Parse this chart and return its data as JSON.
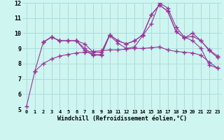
{
  "xlabel": "Windchill (Refroidissement éolien,°C)",
  "bg_color": "#cef5f0",
  "grid_color": "#aadddd",
  "line_color": "#993399",
  "xlim": [
    -0.5,
    23.5
  ],
  "ylim": [
    5,
    12
  ],
  "xticks": [
    0,
    1,
    2,
    3,
    4,
    5,
    6,
    7,
    8,
    9,
    10,
    11,
    12,
    13,
    14,
    15,
    16,
    17,
    18,
    19,
    20,
    21,
    22,
    23
  ],
  "yticks": [
    5,
    6,
    7,
    8,
    9,
    10,
    11,
    12
  ],
  "lines": [
    {
      "x": [
        0,
        1,
        2,
        3,
        4,
        5,
        6,
        7,
        8,
        9,
        10,
        11,
        12,
        13,
        14,
        15,
        16,
        17,
        18,
        19,
        20,
        21,
        22,
        23
      ],
      "y": [
        5.2,
        7.5,
        9.4,
        9.75,
        9.5,
        9.5,
        9.5,
        8.85,
        8.55,
        8.55,
        9.85,
        9.35,
        9.0,
        9.1,
        9.85,
        10.6,
        12.0,
        11.65,
        10.4,
        9.75,
        9.5,
        9.0,
        7.9,
        7.7
      ]
    },
    {
      "x": [
        2,
        3,
        4,
        5,
        6,
        7,
        8,
        9,
        10,
        11,
        12,
        13,
        14,
        15,
        16,
        17,
        18,
        19,
        20,
        21,
        22,
        23
      ],
      "y": [
        9.4,
        9.75,
        9.5,
        9.5,
        9.5,
        9.0,
        8.6,
        8.6,
        9.9,
        9.5,
        9.3,
        9.5,
        9.9,
        11.2,
        11.85,
        11.45,
        10.1,
        9.7,
        10.0,
        9.5,
        8.9,
        8.5
      ]
    },
    {
      "x": [
        2,
        3,
        4,
        5,
        6,
        7,
        8,
        9,
        10,
        11,
        12,
        13,
        14,
        15,
        16,
        17,
        18,
        19,
        20,
        21,
        22,
        23
      ],
      "y": [
        9.4,
        9.75,
        9.5,
        9.5,
        9.5,
        9.3,
        8.75,
        8.75,
        9.9,
        9.5,
        9.3,
        9.5,
        9.9,
        11.2,
        11.85,
        11.45,
        10.1,
        9.7,
        9.8,
        9.5,
        8.85,
        8.4
      ]
    },
    {
      "x": [
        1,
        2,
        3,
        4,
        5,
        6,
        7,
        8,
        9,
        10,
        11,
        12,
        13,
        14,
        15,
        16,
        17,
        18,
        19,
        20,
        21,
        22,
        23
      ],
      "y": [
        7.5,
        8.0,
        8.3,
        8.5,
        8.6,
        8.7,
        8.75,
        8.8,
        8.85,
        8.9,
        8.9,
        8.95,
        9.0,
        9.0,
        9.05,
        9.1,
        8.9,
        8.8,
        8.75,
        8.7,
        8.55,
        8.1,
        7.7
      ]
    }
  ]
}
